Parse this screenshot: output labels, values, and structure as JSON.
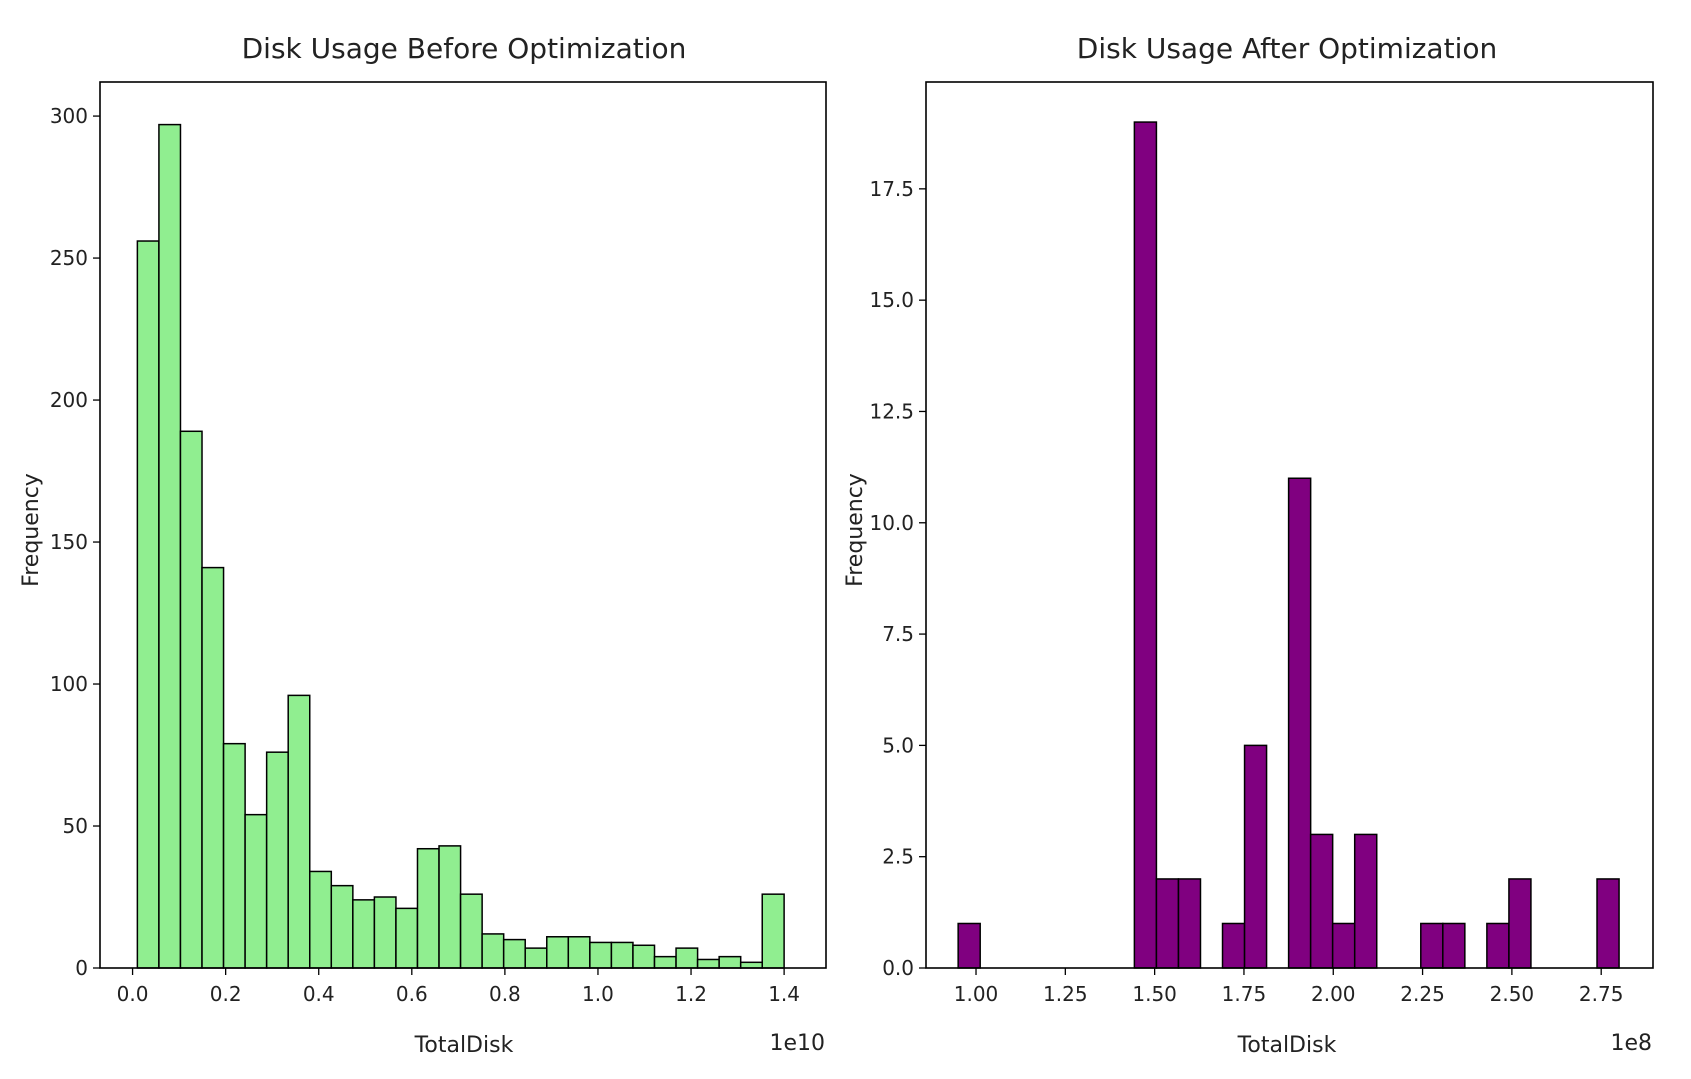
{
  "chart_data": [
    {
      "type": "bar",
      "title": "Disk Usage Before Optimization",
      "xlabel": "TotalDisk",
      "ylabel": "Frequency",
      "x_offset_label": "1e10",
      "bin_edges": [
        0.0103,
        0.0566,
        0.1029,
        0.1492,
        0.1955,
        0.2418,
        0.2881,
        0.3344,
        0.3807,
        0.427,
        0.4733,
        0.5196,
        0.5659,
        0.6122,
        0.6585,
        0.7048,
        0.7511,
        0.7974,
        0.8437,
        0.89,
        0.9363,
        0.9826,
        1.0289,
        1.0752,
        1.1215,
        1.1678,
        1.2141,
        1.2604,
        1.3067,
        1.353,
        1.4
      ],
      "values": [
        256,
        297,
        189,
        141,
        79,
        54,
        76,
        96,
        34,
        29,
        24,
        25,
        21,
        42,
        43,
        26,
        12,
        10,
        7,
        11,
        11,
        9,
        9,
        8,
        4,
        7,
        3,
        4,
        2,
        26
      ],
      "xlim": [
        -0.07,
        1.49
      ],
      "ylim": [
        0,
        312
      ],
      "xticks": [
        0.0,
        0.2,
        0.4,
        0.6,
        0.8,
        1.0,
        1.2,
        1.4
      ],
      "xtick_labels": [
        "0.0",
        "0.2",
        "0.4",
        "0.6",
        "0.8",
        "1.0",
        "1.2",
        "1.4"
      ],
      "yticks": [
        0,
        50,
        100,
        150,
        200,
        250,
        300
      ],
      "ytick_labels": [
        "0",
        "50",
        "100",
        "150",
        "200",
        "250",
        "300"
      ],
      "bar_color": "#90ee90",
      "edge_color": "#000000",
      "grid": false
    },
    {
      "type": "bar",
      "title": "Disk Usage After Optimization",
      "xlabel": "TotalDisk",
      "ylabel": "Frequency",
      "x_offset_label": "1e8",
      "bin_edges": [
        0.95,
        1.0117,
        1.0733,
        1.135,
        1.1967,
        1.2583,
        1.32,
        1.3817,
        1.4433,
        1.505,
        1.5667,
        1.6283,
        1.69,
        1.7517,
        1.8133,
        1.875,
        1.9367,
        1.9983,
        2.06,
        2.1217,
        2.1833,
        2.245,
        2.3067,
        2.3683,
        2.43,
        2.4917,
        2.5533,
        2.615,
        2.6767,
        2.7383,
        2.8
      ],
      "values": [
        1,
        0,
        0,
        0,
        0,
        0,
        0,
        0,
        19,
        2,
        2,
        0,
        1,
        5,
        0,
        11,
        3,
        1,
        3,
        0,
        0,
        1,
        1,
        0,
        1,
        2,
        0,
        0,
        0,
        2
      ],
      "xlim": [
        0.86,
        2.895
      ],
      "ylim": [
        0,
        19.9
      ],
      "xticks": [
        1.0,
        1.25,
        1.5,
        1.75,
        2.0,
        2.25,
        2.5,
        2.75
      ],
      "xtick_labels": [
        "1.00",
        "1.25",
        "1.50",
        "1.75",
        "2.00",
        "2.25",
        "2.50",
        "2.75"
      ],
      "yticks": [
        0,
        2.5,
        5,
        7.5,
        10,
        12.5,
        15,
        17.5
      ],
      "ytick_labels": [
        "0.0",
        "2.5",
        "5.0",
        "7.5",
        "10.0",
        "12.5",
        "15.0",
        "17.5"
      ],
      "bar_color": "#800080",
      "edge_color": "#000000",
      "grid": false
    }
  ]
}
